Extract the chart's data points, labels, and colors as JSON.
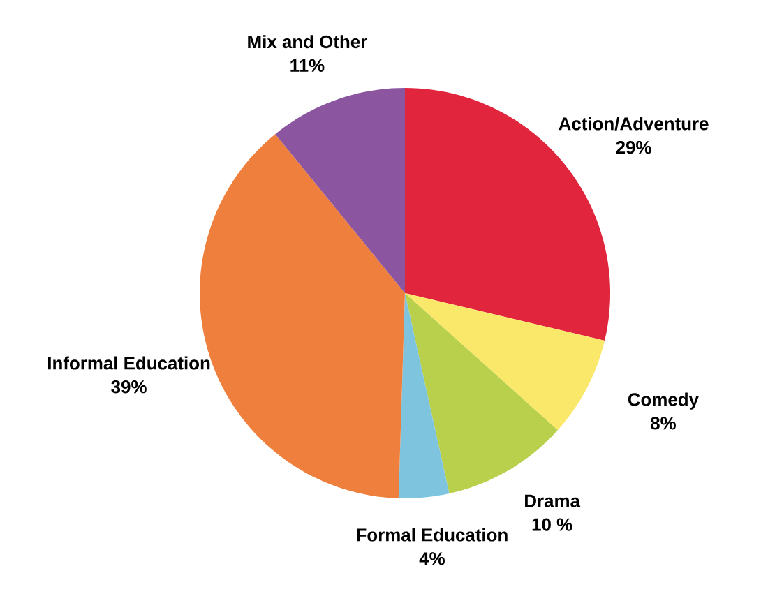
{
  "chart_data": {
    "type": "pie",
    "categories": [
      "Action/Adventure",
      "Comedy",
      "Drama",
      "Formal Education",
      "Informal Education",
      "Mix and Other"
    ],
    "values": [
      29,
      8,
      10,
      4,
      39,
      11
    ],
    "value_labels": [
      "29%",
      "8%",
      "10 %",
      "4%",
      "39%",
      "11%"
    ],
    "colors": [
      "#e0253c",
      "#f9e86a",
      "#b9d04c",
      "#7fc4df",
      "#ef7f3c",
      "#8b55a0"
    ]
  }
}
